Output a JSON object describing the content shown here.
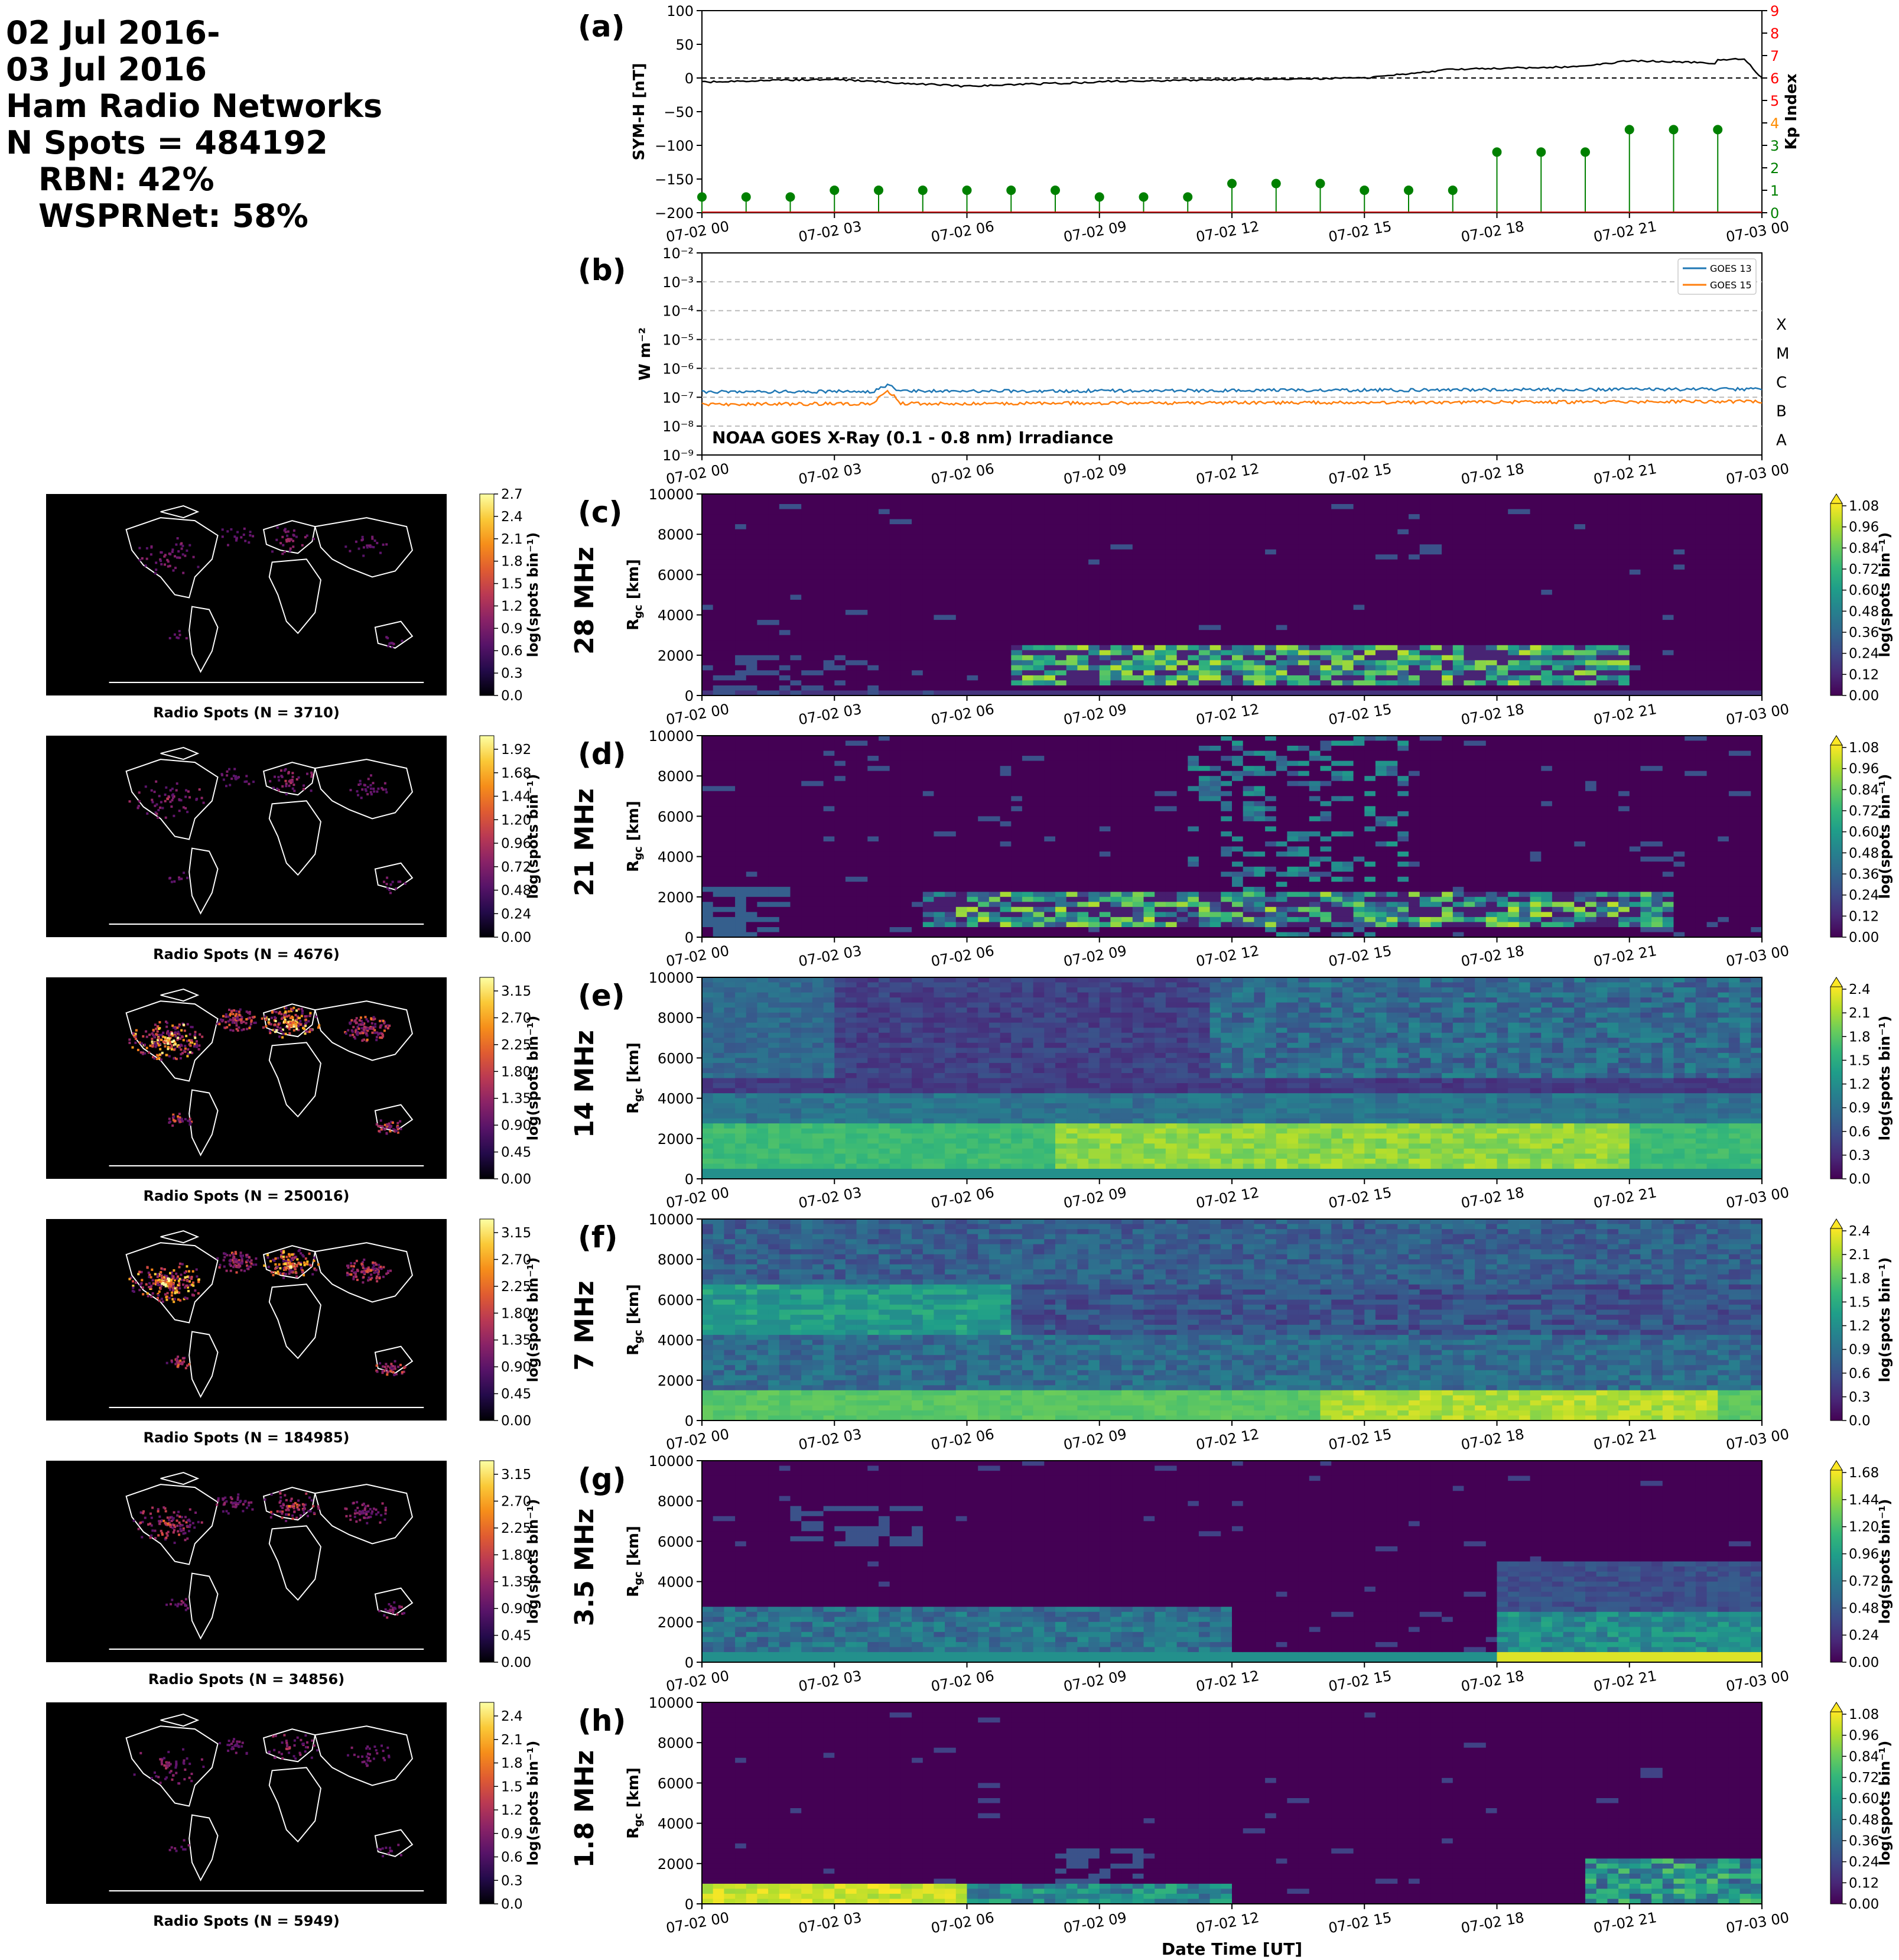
{
  "header": {
    "lines": [
      "02 Jul 2016-",
      "03 Jul 2016",
      "Ham Radio Networks",
      "N Spots = 484192"
    ],
    "rbn": "RBN: 42%",
    "wspr": "WSPRNet: 58%"
  },
  "time_ticks": [
    "07-02 00",
    "07-02 03",
    "07-02 06",
    "07-02 09",
    "07-02 12",
    "07-02 15",
    "07-02 18",
    "07-02 21",
    "07-03 00"
  ],
  "panel_a": {
    "label": "(a)",
    "ylabel_left": "SYM-H [nT]",
    "ylabel_right": "Kp Index",
    "left_ticks": [
      "100",
      "50",
      "0",
      "−50",
      "−100",
      "−150",
      "−200"
    ],
    "right_ticks": [
      "9",
      "8",
      "7",
      "6",
      "5",
      "4",
      "3",
      "2",
      "1",
      "0"
    ]
  },
  "panel_b": {
    "label": "(b)",
    "ylabel": "W m⁻²",
    "yticks": [
      "10⁻²",
      "10⁻³",
      "10⁻⁴",
      "10⁻⁵",
      "10⁻⁶",
      "10⁻⁷",
      "10⁻⁸",
      "10⁻⁹"
    ],
    "class_labels": [
      "X",
      "M",
      "C",
      "B",
      "A"
    ],
    "legend": [
      "GOES 13",
      "GOES 15"
    ],
    "annotation": "NOAA GOES X-Ray (0.1 - 0.8 nm) Irradiance"
  },
  "band_panels": [
    {
      "label": "(c)",
      "band": "28 MHz",
      "map_caption": "Radio Spots (N = 3710)",
      "map_cbar_ticks": [
        "2.7",
        "2.4",
        "2.1",
        "1.8",
        "1.5",
        "1.2",
        "0.9",
        "0.6",
        "0.3",
        "0.0"
      ],
      "rgc_cbar_ticks": [
        "1.08",
        "0.96",
        "0.84",
        "0.72",
        "0.60",
        "0.48",
        "0.36",
        "0.24",
        "0.12",
        "0.00"
      ]
    },
    {
      "label": "(d)",
      "band": "21 MHz",
      "map_caption": "Radio Spots (N = 4676)",
      "map_cbar_ticks": [
        "1.92",
        "1.68",
        "1.44",
        "1.20",
        "0.96",
        "0.72",
        "0.48",
        "0.24",
        "0.00"
      ],
      "rgc_cbar_ticks": [
        "1.08",
        "0.96",
        "0.84",
        "0.72",
        "0.60",
        "0.48",
        "0.36",
        "0.24",
        "0.12",
        "0.00"
      ]
    },
    {
      "label": "(e)",
      "band": "14 MHz",
      "map_caption": "Radio Spots (N = 250016)",
      "map_cbar_ticks": [
        "3.15",
        "2.70",
        "2.25",
        "1.80",
        "1.35",
        "0.90",
        "0.45",
        "0.00"
      ],
      "rgc_cbar_ticks": [
        "2.4",
        "2.1",
        "1.8",
        "1.5",
        "1.2",
        "0.9",
        "0.6",
        "0.3",
        "0.0"
      ]
    },
    {
      "label": "(f)",
      "band": "7 MHz",
      "map_caption": "Radio Spots (N = 184985)",
      "map_cbar_ticks": [
        "3.15",
        "2.70",
        "2.25",
        "1.80",
        "1.35",
        "0.90",
        "0.45",
        "0.00"
      ],
      "rgc_cbar_ticks": [
        "2.4",
        "2.1",
        "1.8",
        "1.5",
        "1.2",
        "0.9",
        "0.6",
        "0.3",
        "0.0"
      ]
    },
    {
      "label": "(g)",
      "band": "3.5 MHz",
      "map_caption": "Radio Spots (N = 34856)",
      "map_cbar_ticks": [
        "3.15",
        "2.70",
        "2.25",
        "1.80",
        "1.35",
        "0.90",
        "0.45",
        "0.00"
      ],
      "rgc_cbar_ticks": [
        "1.68",
        "1.44",
        "1.20",
        "0.96",
        "0.72",
        "0.48",
        "0.24",
        "0.00"
      ]
    },
    {
      "label": "(h)",
      "band": "1.8 MHz",
      "map_caption": "Radio Spots (N = 5949)",
      "map_cbar_ticks": [
        "2.4",
        "2.1",
        "1.8",
        "1.5",
        "1.2",
        "0.9",
        "0.6",
        "0.3",
        "0.0"
      ],
      "rgc_cbar_ticks": [
        "1.08",
        "0.96",
        "0.84",
        "0.72",
        "0.60",
        "0.48",
        "0.36",
        "0.24",
        "0.12",
        "0.00"
      ]
    }
  ],
  "rgc_ylabel": "R_gc [km]",
  "rgc_yticks": [
    "10000",
    "8000",
    "6000",
    "4000",
    "2000",
    "0"
  ],
  "cbar_label": "log(spots bin⁻¹)",
  "xlabel": "Date Time [UT]",
  "colors": {
    "viridis_low": "#440154",
    "viridis_mid": "#21918c",
    "viridis_high": "#fde725",
    "goes13": "#1f77b4",
    "goes15": "#ff7f0e",
    "kp": "#008000",
    "kp_axis": "#ff0000"
  },
  "chart_data": [
    {
      "type": "line",
      "title": "",
      "x": [
        "07-02 00",
        "07-02 03",
        "07-02 06",
        "07-02 09",
        "07-02 12",
        "07-02 15",
        "07-02 18",
        "07-02 21",
        "07-03 00"
      ],
      "series": [
        {
          "name": "SYM-H [nT]",
          "values": [
            -6,
            -2,
            -12,
            -6,
            -2,
            0,
            14,
            18,
            22
          ]
        }
      ],
      "ylabel": "SYM-H [nT]",
      "ylim": [
        -200,
        100
      ]
    },
    {
      "type": "bar",
      "x": [
        "07-02 00",
        "07-02 01",
        "07-02 02",
        "07-02 03",
        "07-02 04",
        "07-02 05",
        "07-02 06",
        "07-02 07",
        "07-02 08",
        "07-02 09",
        "07-02 10",
        "07-02 11",
        "07-02 12",
        "07-02 13",
        "07-02 14",
        "07-02 15",
        "07-02 16",
        "07-02 17",
        "07-02 18",
        "07-02 19",
        "07-02 20",
        "07-02 21",
        "07-02 22",
        "07-02 23"
      ],
      "series": [
        {
          "name": "Kp Index",
          "values": [
            0.7,
            0.7,
            0.7,
            1.0,
            1.0,
            1.0,
            1.0,
            1.0,
            1.0,
            0.7,
            0.7,
            0.7,
            1.3,
            1.3,
            1.3,
            1.0,
            1.0,
            1.0,
            2.7,
            2.7,
            2.7,
            3.7,
            3.7,
            3.7
          ]
        }
      ],
      "ylabel": "Kp Index",
      "ylim": [
        0,
        9
      ]
    },
    {
      "type": "line",
      "x": [
        "07-02 00",
        "07-02 03",
        "07-02 04",
        "07-02 06",
        "07-02 09",
        "07-02 12",
        "07-02 15",
        "07-02 18",
        "07-02 21",
        "07-03 00"
      ],
      "series": [
        {
          "name": "GOES 13",
          "values": [
            1.6e-07,
            1.6e-07,
            2.4e-07,
            1.6e-07,
            1.6e-07,
            1.6e-07,
            1.6e-07,
            1.7e-07,
            1.7e-07,
            1.8e-07
          ]
        },
        {
          "name": "GOES 15",
          "values": [
            6e-08,
            6e-08,
            1.5e-07,
            6e-08,
            5.5e-08,
            6e-08,
            6e-08,
            6.5e-08,
            7e-08,
            8e-08
          ]
        }
      ],
      "ylabel": "W m⁻²",
      "ylim": [
        1e-09,
        0.01
      ],
      "yscale": "log"
    }
  ]
}
